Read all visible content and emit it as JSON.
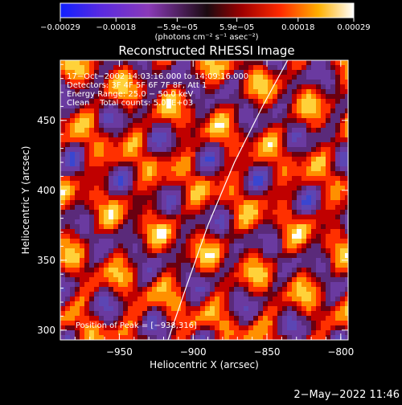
{
  "chart_data": {
    "type": "heatmap",
    "title": "Reconstructed RHESSI Image",
    "xlabel": "Heliocentric X (arcsec)",
    "ylabel": "Heliocentric Y (arcsec)",
    "xlim": [
      -990,
      -795
    ],
    "ylim": [
      293,
      493
    ],
    "x_ticks": [
      {
        "value": -950,
        "label": "−950"
      },
      {
        "value": -900,
        "label": "−900"
      },
      {
        "value": -850,
        "label": "−850"
      },
      {
        "value": -800,
        "label": "−800"
      }
    ],
    "y_ticks": [
      {
        "value": 300,
        "label": "300"
      },
      {
        "value": 350,
        "label": "350"
      },
      {
        "value": 400,
        "label": "400"
      },
      {
        "value": 450,
        "label": "450"
      }
    ],
    "colorbar": {
      "range": [
        -0.00029,
        0.00029
      ],
      "ticks": [
        {
          "value": -0.00029,
          "label": "−0.00029"
        },
        {
          "value": -0.00018,
          "label": "−0.00018"
        },
        {
          "value": -5.9e-05,
          "label": "−5.9e−05"
        },
        {
          "value": 5.9e-05,
          "label": "5.9e−05"
        },
        {
          "value": 0.00018,
          "label": "0.00018"
        },
        {
          "value": 0.00029,
          "label": "0.00029"
        }
      ],
      "units_label": "(photons cm⁻² s⁻¹ asec⁻²)"
    },
    "annotations": [
      "17−Oct−2002 14:03:16.000 to 14:09:16.000",
      "Detectors: 3F 4F 5F 6F 7F 8F, Att 1",
      "Energy Range: 25.0 − 50.0 keV",
      "Clean    Total counts: 5.09E+03"
    ],
    "peak_label": "Position of Peak = [−938,316]",
    "limb": [
      [
        -917,
        293
      ],
      [
        -905,
        330
      ],
      [
        -890,
        375
      ],
      [
        -872,
        420
      ],
      [
        -853,
        460
      ],
      [
        -836,
        493
      ]
    ]
  },
  "footer": {
    "timestamp": "2−May−2022 11:46"
  }
}
